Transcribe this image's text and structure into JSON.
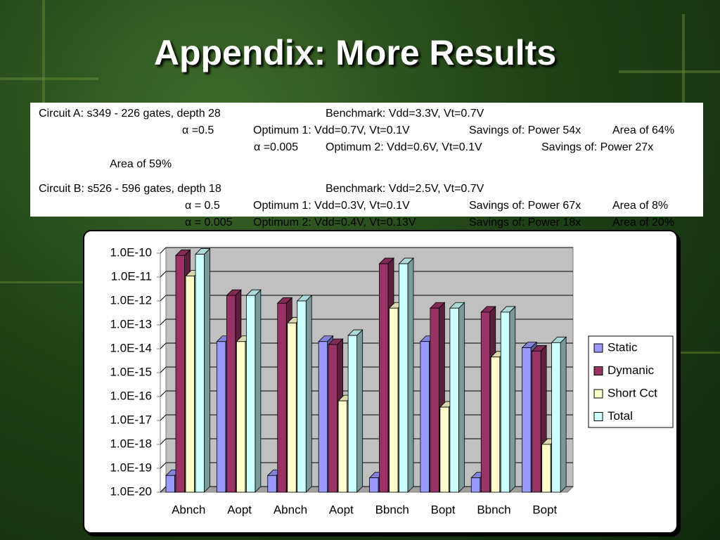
{
  "title": "Appendix: More Results",
  "notes": [
    [
      "Circuit A: s349 - 226 gates, depth 28",
      "Benchmark: Vdd=3.3V, Vt=0.7V"
    ],
    [
      "α =0.5",
      "Optimum 1: Vdd=0.7V, Vt=0.1V",
      "Savings of: Power 54x",
      "Area of 64%"
    ],
    [
      "α =0.005",
      "Optimum 2: Vdd=0.6V, Vt=0.1V",
      "Savings of: Power 27x"
    ],
    [
      "Area of 59%"
    ],
    [
      "Circuit B: s526 - 596 gates, depth 18",
      "Benchmark: Vdd=2.5V, Vt=0.7V"
    ],
    [
      "α = 0.5",
      "Optimum 1: Vdd=0.3V, Vt=0.1V",
      "Savings of: Power 67x",
      "Area of 8%"
    ],
    [
      "α = 0.005",
      "Optimum 2: Vdd=0.4V, Vt=0.13V",
      "Savings of: Power 18x",
      "Area of 20%"
    ]
  ],
  "chart_data": {
    "type": "bar",
    "log_scale": true,
    "grid": true,
    "legend": "right",
    "categories": [
      "Abnch",
      "Aopt",
      "Abnch",
      "Aopt",
      "Bbnch",
      "Bopt",
      "Bbnch",
      "Bopt"
    ],
    "series": [
      {
        "name": "Static",
        "color": "#9999ff",
        "values": [
          5e-20,
          2e-14,
          5e-20,
          2e-14,
          4e-20,
          2e-14,
          4e-20,
          1.1e-14
        ]
      },
      {
        "name": "Dymanic",
        "color": "#993366",
        "values": [
          8e-11,
          1.7e-12,
          8e-13,
          1.5e-14,
          3.6e-11,
          5e-13,
          3.4e-13,
          8e-15
        ]
      },
      {
        "name": "Short Cct",
        "color": "#ffffcc",
        "values": [
          1.1e-11,
          2e-14,
          1.2e-13,
          6.6e-17,
          5e-13,
          3.6e-17,
          4.5e-15,
          1e-18
        ]
      },
      {
        "name": "Total",
        "color": "#ccffff",
        "values": [
          9e-11,
          1.7e-12,
          1e-12,
          3.6e-14,
          3.6e-11,
          5e-13,
          3.4e-13,
          1.8e-14
        ]
      }
    ],
    "ylim": [
      1e-20,
      1e-10
    ],
    "yticks": [
      {
        "value": 1e-20,
        "label": "1.0E-20"
      },
      {
        "value": 1e-19,
        "label": "1.0E-19"
      },
      {
        "value": 1e-18,
        "label": "1.0E-18"
      },
      {
        "value": 1e-17,
        "label": "1.0E-17"
      },
      {
        "value": 1e-16,
        "label": "1.0E-16"
      },
      {
        "value": 1e-15,
        "label": "1.0E-15"
      },
      {
        "value": 1e-14,
        "label": "1.0E-14"
      },
      {
        "value": 1e-13,
        "label": "1.0E-13"
      },
      {
        "value": 1e-12,
        "label": "1.0E-12"
      },
      {
        "value": 1e-11,
        "label": "1.0E-11"
      },
      {
        "value": 1e-10,
        "label": "1.0E-10"
      }
    ]
  }
}
